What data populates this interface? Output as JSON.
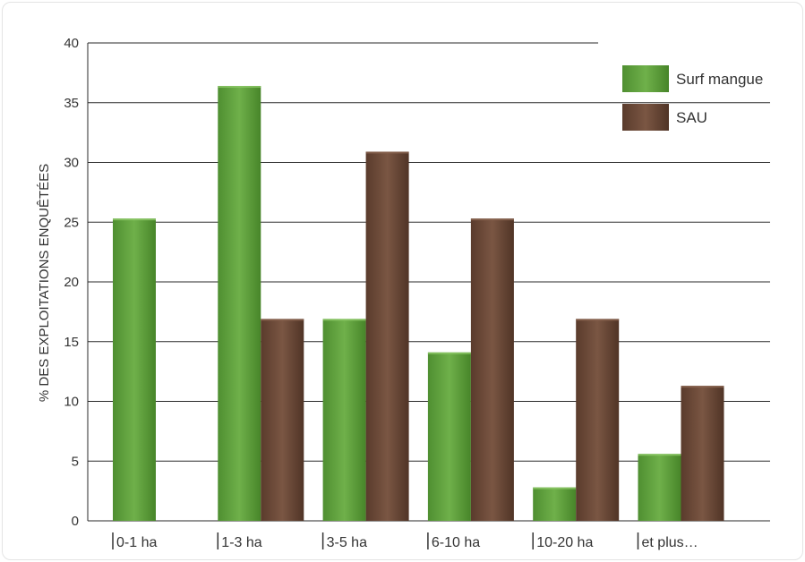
{
  "chart_data": {
    "type": "bar",
    "ylabel": "% DES EXPLOITATIONS ENQUÊTÉES",
    "xlabel": "",
    "ylim": [
      0,
      40
    ],
    "yticks": [
      0,
      5,
      10,
      15,
      20,
      25,
      30,
      35,
      40
    ],
    "grid": true,
    "legend_position": "top-right",
    "categories": [
      "0-1 ha",
      "1-3 ha",
      "3-5 ha",
      "6-10 ha",
      "10-20 ha",
      "et plus…"
    ],
    "series": [
      {
        "name": "Surf mangue",
        "color": "#5a9a3a",
        "values": [
          25.3,
          36.4,
          16.9,
          14.1,
          2.8,
          5.6
        ]
      },
      {
        "name": "SAU",
        "color": "#6b4a38",
        "values": [
          null,
          16.9,
          30.9,
          25.3,
          16.9,
          11.3
        ]
      }
    ]
  }
}
